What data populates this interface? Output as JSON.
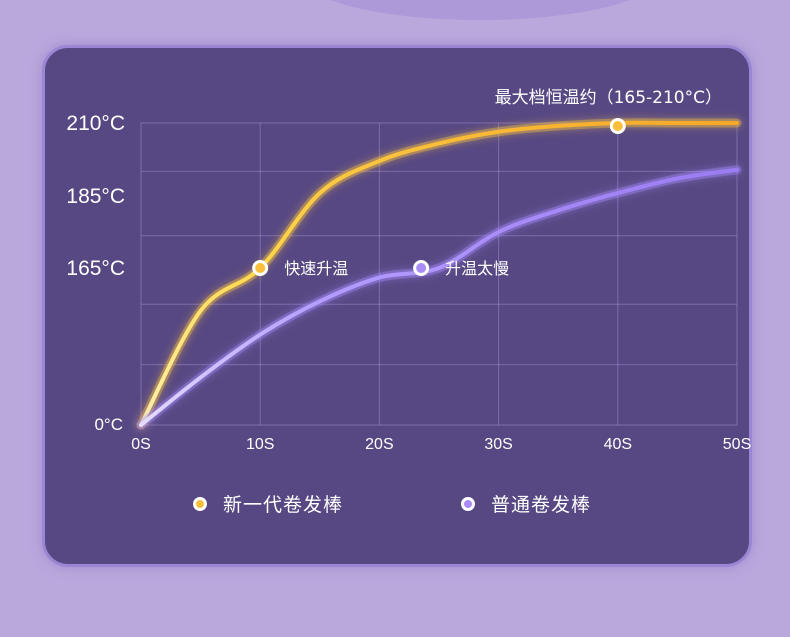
{
  "chart_data": {
    "type": "line",
    "x": [
      0,
      10,
      20,
      30,
      40,
      50
    ],
    "x_tick_labels": [
      "0S",
      "10S",
      "20S",
      "30S",
      "40S",
      "50S"
    ],
    "y_tick_labels": [
      "0°C",
      "165°C",
      "185°C",
      "210°C"
    ],
    "y_ticks": [
      0,
      165,
      185,
      210
    ],
    "series": [
      {
        "name": "新一代卷发棒",
        "color": "#fbbf3c",
        "x": [
          0,
          5,
          10,
          15,
          20,
          25,
          30,
          35,
          40,
          45,
          50
        ],
        "values": [
          0,
          120,
          165,
          186,
          197,
          203,
          207,
          209,
          210,
          210,
          210
        ]
      },
      {
        "name": "普通卷发棒",
        "color": "#a98cf5",
        "x": [
          0,
          5,
          10,
          15,
          20,
          25,
          30,
          35,
          40,
          45,
          50
        ],
        "values": [
          0,
          50,
          95,
          130,
          155,
          165,
          175,
          181,
          186,
          191,
          194
        ]
      }
    ],
    "annotations": [
      {
        "text": "快速升温",
        "series": 0,
        "x": 10,
        "y": 165
      },
      {
        "text": "升温太慢",
        "series": 1,
        "x": 23.5,
        "y": 165
      },
      {
        "text": "最大档恒温约（165-210°C）",
        "series": 0,
        "x": 40,
        "y": 210
      }
    ],
    "xlim": [
      0,
      50
    ],
    "grid": true,
    "legend_position": "bottom"
  }
}
